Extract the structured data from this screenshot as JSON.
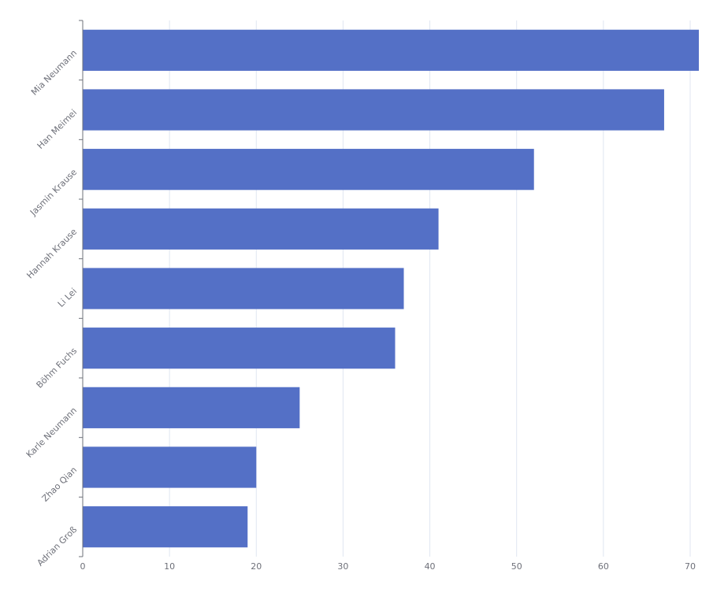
{
  "chart_data": {
    "type": "bar",
    "orientation": "horizontal",
    "title": "",
    "xlabel": "",
    "ylabel": "",
    "categories": [
      "Mia Neumann",
      "Han Meimei",
      "Jasmin Krause",
      "Hannah Krause",
      "Li Lei",
      "Böhm Fuchs",
      "Karle Neumann",
      "Zhao Qian",
      "Adrian Groß"
    ],
    "values": [
      71,
      67,
      52,
      41,
      37,
      36,
      25,
      20,
      19
    ],
    "xlim": [
      0,
      71
    ],
    "x_ticks": [
      0,
      10,
      20,
      30,
      40,
      50,
      60,
      70
    ],
    "grid": true,
    "legend": null,
    "colors": {
      "bar": "#5470c6",
      "grid": "#e0e6f1",
      "axis": "#6e7079",
      "label": "#6e7079"
    }
  }
}
